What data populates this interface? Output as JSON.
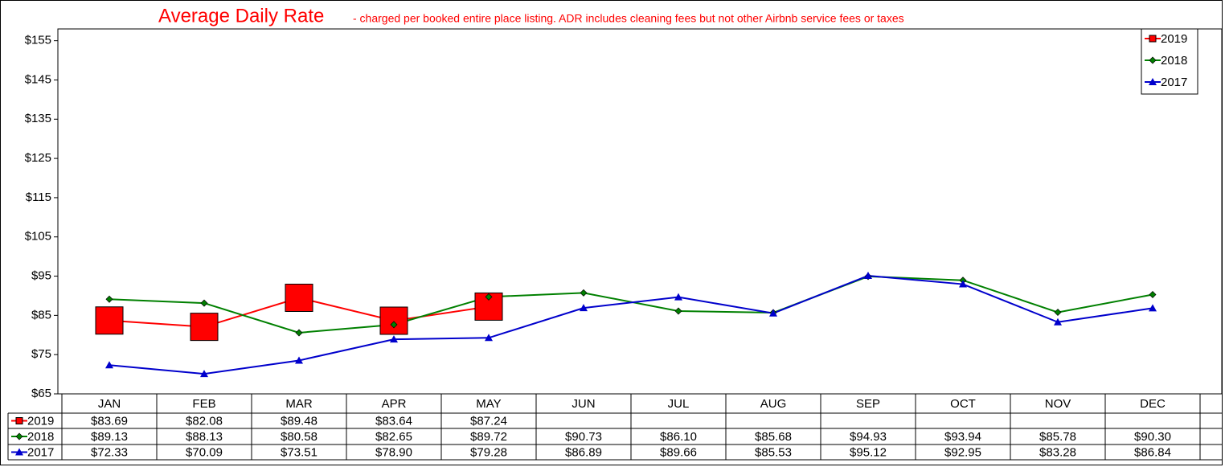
{
  "chart_data": {
    "type": "line",
    "title": "Average Daily Rate",
    "subtitle": "- charged per booked entire place listing. ADR includes cleaning fees but not other Airbnb service fees or taxes",
    "categories": [
      "JAN",
      "FEB",
      "MAR",
      "APR",
      "MAY",
      "JUN",
      "JUL",
      "AUG",
      "SEP",
      "OCT",
      "NOV",
      "DEC"
    ],
    "series": [
      {
        "name": "2019",
        "color": "#ff0000",
        "marker": "square",
        "values": [
          83.69,
          82.08,
          89.48,
          83.64,
          87.24,
          null,
          null,
          null,
          null,
          null,
          null,
          null
        ],
        "value_labels": [
          "$83.69",
          "$82.08",
          "$89.48",
          "$83.64",
          "$87.24",
          null,
          null,
          null,
          null,
          null,
          null,
          null
        ]
      },
      {
        "name": "2018",
        "color": "#008000",
        "marker": "diamond",
        "values": [
          89.13,
          88.13,
          80.58,
          82.65,
          89.72,
          90.73,
          86.1,
          85.68,
          94.93,
          93.94,
          85.78,
          90.3
        ],
        "value_labels": [
          "$89.13",
          "$88.13",
          "$80.58",
          "$82.65",
          "$89.72",
          "$90.73",
          "$86.10",
          "$85.68",
          "$94.93",
          "$93.94",
          "$85.78",
          "$90.30"
        ]
      },
      {
        "name": "2017",
        "color": "#0000cc",
        "marker": "triangle",
        "values": [
          72.33,
          70.09,
          73.51,
          78.9,
          79.28,
          86.89,
          89.66,
          85.53,
          95.12,
          92.95,
          83.28,
          86.84
        ],
        "value_labels": [
          "$72.33",
          "$70.09",
          "$73.51",
          "$78.90",
          "$79.28",
          "$86.89",
          "$89.66",
          "$85.53",
          "$95.12",
          "$92.95",
          "$83.28",
          "$86.84"
        ]
      }
    ],
    "ylim": [
      65,
      158
    ],
    "yticks": [
      {
        "value": 65,
        "label": "$65"
      },
      {
        "value": 75,
        "label": "$75"
      },
      {
        "value": 85,
        "label": "$85"
      },
      {
        "value": 95,
        "label": "$95"
      },
      {
        "value": 105,
        "label": "$105"
      },
      {
        "value": 115,
        "label": "$115"
      },
      {
        "value": 125,
        "label": "$125"
      },
      {
        "value": 135,
        "label": "$135"
      },
      {
        "value": 145,
        "label": "$145"
      },
      {
        "value": 155,
        "label": "$155"
      }
    ],
    "grid": false,
    "legend": "top-right"
  }
}
